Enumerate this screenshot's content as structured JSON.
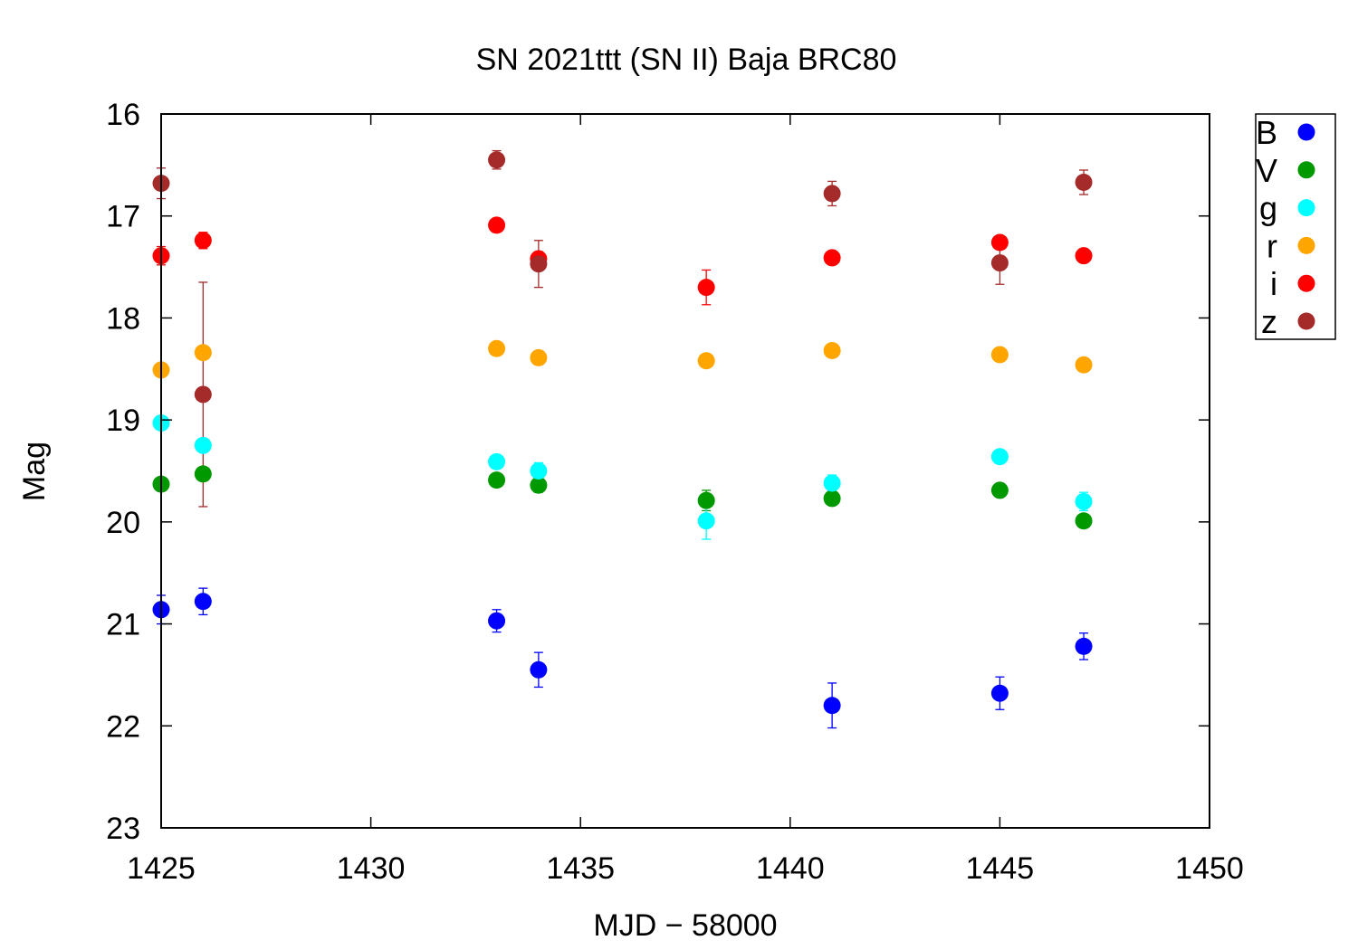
{
  "chart_data": {
    "type": "scatter",
    "title": "SN 2021ttt (SN II) Baja BRC80",
    "xlabel": "MJD − 58000",
    "ylabel": "Mag",
    "xlim": [
      1425,
      1450
    ],
    "ylim": [
      16,
      23
    ],
    "y_inverted": true,
    "xticks": [
      1425,
      1430,
      1435,
      1440,
      1445,
      1450
    ],
    "yticks": [
      16,
      17,
      18,
      19,
      20,
      21,
      22,
      23
    ],
    "grid": false,
    "legend_position": "outside-top-right",
    "series": [
      {
        "name": "B",
        "color": "#0000ff",
        "points": [
          {
            "x": 1425.0,
            "y": 20.86,
            "err": 0.14
          },
          {
            "x": 1426.0,
            "y": 20.78,
            "err": 0.13
          },
          {
            "x": 1433.0,
            "y": 20.97,
            "err": 0.11
          },
          {
            "x": 1434.0,
            "y": 21.45,
            "err": 0.17
          },
          {
            "x": 1441.0,
            "y": 21.8,
            "err": 0.22
          },
          {
            "x": 1445.0,
            "y": 21.68,
            "err": 0.16
          },
          {
            "x": 1447.0,
            "y": 21.22,
            "err": 0.13
          }
        ]
      },
      {
        "name": "V",
        "color": "#009900",
        "points": [
          {
            "x": 1425.0,
            "y": 19.63,
            "err": 0.05
          },
          {
            "x": 1426.0,
            "y": 19.53,
            "err": 0.05
          },
          {
            "x": 1433.0,
            "y": 19.59,
            "err": 0.04
          },
          {
            "x": 1434.0,
            "y": 19.64,
            "err": 0.07
          },
          {
            "x": 1438.0,
            "y": 19.79,
            "err": 0.1
          },
          {
            "x": 1441.0,
            "y": 19.77,
            "err": 0.06
          },
          {
            "x": 1445.0,
            "y": 19.69,
            "err": 0.04
          },
          {
            "x": 1447.0,
            "y": 19.99,
            "err": 0.06
          }
        ]
      },
      {
        "name": "g",
        "color": "#00ffff",
        "points": [
          {
            "x": 1425.0,
            "y": 19.03,
            "err": 0.04
          },
          {
            "x": 1426.0,
            "y": 19.25,
            "err": 0.05
          },
          {
            "x": 1433.0,
            "y": 19.41,
            "err": 0.05
          },
          {
            "x": 1434.0,
            "y": 19.5,
            "err": 0.08
          },
          {
            "x": 1438.0,
            "y": 19.99,
            "err": 0.18
          },
          {
            "x": 1441.0,
            "y": 19.62,
            "err": 0.08
          },
          {
            "x": 1445.0,
            "y": 19.36,
            "err": 0.04
          },
          {
            "x": 1447.0,
            "y": 19.8,
            "err": 0.09
          }
        ]
      },
      {
        "name": "r",
        "color": "#ffa500",
        "points": [
          {
            "x": 1425.0,
            "y": 18.51,
            "err": 0.03
          },
          {
            "x": 1426.0,
            "y": 18.34,
            "err": 0.04
          },
          {
            "x": 1433.0,
            "y": 18.3,
            "err": 0.03
          },
          {
            "x": 1434.0,
            "y": 18.39,
            "err": 0.04
          },
          {
            "x": 1438.0,
            "y": 18.42,
            "err": 0.05
          },
          {
            "x": 1441.0,
            "y": 18.32,
            "err": 0.03
          },
          {
            "x": 1445.0,
            "y": 18.36,
            "err": 0.03
          },
          {
            "x": 1447.0,
            "y": 18.46,
            "err": 0.04
          }
        ]
      },
      {
        "name": "i",
        "color": "#ff0000",
        "points": [
          {
            "x": 1425.0,
            "y": 17.39,
            "err": 0.09
          },
          {
            "x": 1426.0,
            "y": 17.24,
            "err": 0.08
          },
          {
            "x": 1433.0,
            "y": 17.09,
            "err": 0.04
          },
          {
            "x": 1434.0,
            "y": 17.42,
            "err": 0.07
          },
          {
            "x": 1438.0,
            "y": 17.7,
            "err": 0.17
          },
          {
            "x": 1441.0,
            "y": 17.41,
            "err": 0.04
          },
          {
            "x": 1445.0,
            "y": 17.26,
            "err": 0.04
          },
          {
            "x": 1447.0,
            "y": 17.39,
            "err": 0.06
          }
        ]
      },
      {
        "name": "z",
        "color": "#a52a2a",
        "points": [
          {
            "x": 1425.0,
            "y": 16.68,
            "err": 0.15
          },
          {
            "x": 1426.0,
            "y": 18.75,
            "err": 1.1
          },
          {
            "x": 1433.0,
            "y": 16.45,
            "err": 0.09
          },
          {
            "x": 1434.0,
            "y": 17.47,
            "err": 0.23
          },
          {
            "x": 1441.0,
            "y": 16.78,
            "err": 0.12
          },
          {
            "x": 1445.0,
            "y": 17.46,
            "err": 0.21
          },
          {
            "x": 1447.0,
            "y": 16.67,
            "err": 0.12
          }
        ]
      }
    ]
  }
}
